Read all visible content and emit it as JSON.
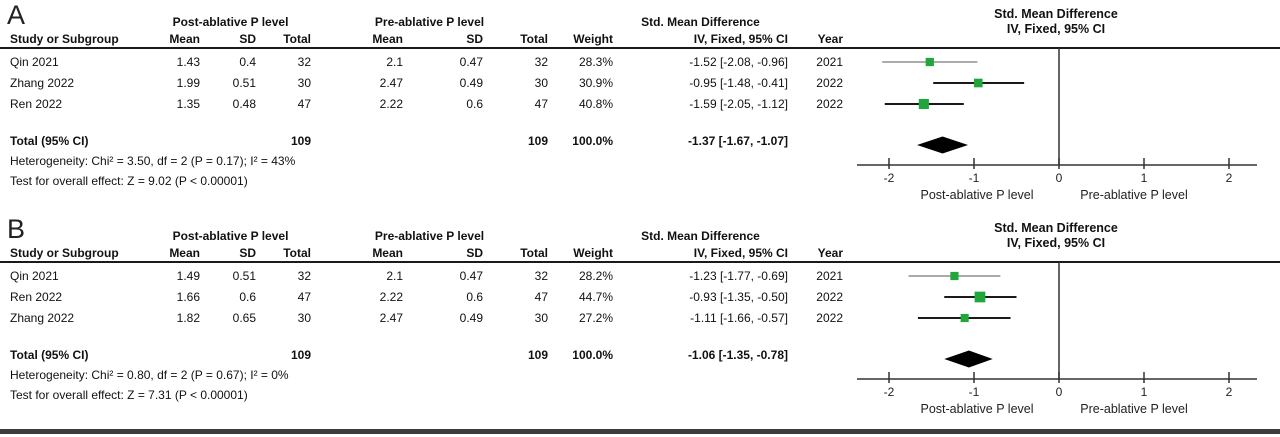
{
  "colors": {
    "marker_green": "#21a63c",
    "diamond_black": "#000000",
    "ci_line_dark": "#1a1a1a",
    "ci_line_light": "#8f8f8f",
    "rule_black": "#1a1a1a"
  },
  "headers": {
    "study": "Study or Subgroup",
    "mean": "Mean",
    "sd": "SD",
    "total": "Total",
    "weight": "Weight",
    "effect": "Std. Mean Difference",
    "ci_model": "IV, Fixed, 95% CI",
    "year": "Year"
  },
  "chart_data": [
    {
      "type": "forest",
      "panel": "A",
      "title": "Std. Mean Difference",
      "subtitle": "IV, Fixed, 95% CI",
      "groups": [
        "Post-ablative P level",
        "Pre-ablative P level"
      ],
      "xlim": [
        -2.4,
        2.4
      ],
      "ticks": [
        -2,
        -1,
        0,
        1,
        2
      ],
      "xlabel_left": "Post-ablative P level",
      "xlabel_right": "Pre-ablative P level",
      "studies": [
        {
          "name": "Qin 2021",
          "post_mean": "1.43",
          "post_sd": "0.4",
          "post_total": "32",
          "pre_mean": "2.1",
          "pre_sd": "0.47",
          "pre_total": "32",
          "weight": "28.3%",
          "ci_text": "-1.52 [-2.08, -0.96]",
          "year": "2021",
          "est": -1.52,
          "lo": -2.08,
          "hi": -0.96,
          "weight_val": 28.3,
          "line_shade": "light"
        },
        {
          "name": "Zhang 2022",
          "post_mean": "1.99",
          "post_sd": "0.51",
          "post_total": "30",
          "pre_mean": "2.47",
          "pre_sd": "0.49",
          "pre_total": "30",
          "weight": "30.9%",
          "ci_text": "-0.95 [-1.48, -0.41]",
          "year": "2022",
          "est": -0.95,
          "lo": -1.48,
          "hi": -0.41,
          "weight_val": 30.9,
          "line_shade": "dark"
        },
        {
          "name": "Ren 2022",
          "post_mean": "1.35",
          "post_sd": "0.48",
          "post_total": "47",
          "pre_mean": "2.22",
          "pre_sd": "0.6",
          "pre_total": "47",
          "weight": "40.8%",
          "ci_text": "-1.59 [-2.05, -1.12]",
          "year": "2022",
          "est": -1.59,
          "lo": -2.05,
          "hi": -1.12,
          "weight_val": 40.8,
          "line_shade": "dark"
        }
      ],
      "total": {
        "label": "Total (95% CI)",
        "post_total": "109",
        "pre_total": "109",
        "weight": "100.0%",
        "ci_text": "-1.37 [-1.67, -1.07]",
        "est": -1.37,
        "lo": -1.67,
        "hi": -1.07
      },
      "heterogeneity": "Heterogeneity: Chi² = 3.50, df = 2 (P = 0.17); I² = 43%",
      "overall_effect": "Test for overall effect: Z = 9.02 (P < 0.00001)"
    },
    {
      "type": "forest",
      "panel": "B",
      "title": "Std. Mean Difference",
      "subtitle": "IV, Fixed, 95% CI",
      "groups": [
        "Post-ablative P level",
        "Pre-ablative P level"
      ],
      "xlim": [
        -2.4,
        2.4
      ],
      "ticks": [
        -2,
        -1,
        0,
        1,
        2
      ],
      "xlabel_left": "Post-ablative P level",
      "xlabel_right": "Pre-ablative P level",
      "studies": [
        {
          "name": "Qin 2021",
          "post_mean": "1.49",
          "post_sd": "0.51",
          "post_total": "32",
          "pre_mean": "2.1",
          "pre_sd": "0.47",
          "pre_total": "32",
          "weight": "28.2%",
          "ci_text": "-1.23 [-1.77, -0.69]",
          "year": "2021",
          "est": -1.23,
          "lo": -1.77,
          "hi": -0.69,
          "weight_val": 28.2,
          "line_shade": "light"
        },
        {
          "name": "Ren 2022",
          "post_mean": "1.66",
          "post_sd": "0.6",
          "post_total": "47",
          "pre_mean": "2.22",
          "pre_sd": "0.6",
          "pre_total": "47",
          "weight": "44.7%",
          "ci_text": "-0.93 [-1.35, -0.50]",
          "year": "2022",
          "est": -0.93,
          "lo": -1.35,
          "hi": -0.5,
          "weight_val": 44.7,
          "line_shade": "dark"
        },
        {
          "name": "Zhang 2022",
          "post_mean": "1.82",
          "post_sd": "0.65",
          "post_total": "30",
          "pre_mean": "2.47",
          "pre_sd": "0.49",
          "pre_total": "30",
          "weight": "27.2%",
          "ci_text": "-1.11 [-1.66, -0.57]",
          "year": "2022",
          "est": -1.11,
          "lo": -1.66,
          "hi": -0.57,
          "weight_val": 27.2,
          "line_shade": "dark"
        }
      ],
      "total": {
        "label": "Total (95% CI)",
        "post_total": "109",
        "pre_total": "109",
        "weight": "100.0%",
        "ci_text": "-1.06 [-1.35, -0.78]",
        "est": -1.06,
        "lo": -1.35,
        "hi": -0.78
      },
      "heterogeneity": "Heterogeneity: Chi² = 0.80, df = 2 (P = 0.67); I² = 0%",
      "overall_effect": "Test for overall effect: Z = 7.31 (P < 0.00001)"
    }
  ]
}
